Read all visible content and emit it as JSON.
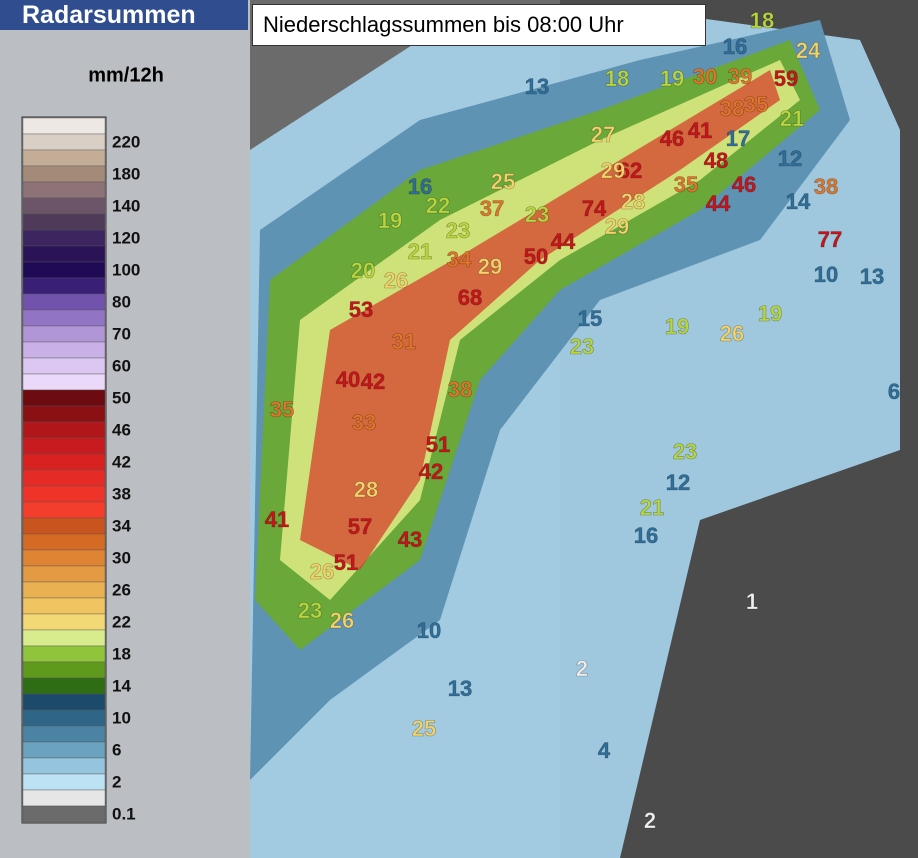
{
  "header": {
    "title": "Radarsummen",
    "subtitle": "Niederschlagssummen bis 08:00 Uhr"
  },
  "legend": {
    "unit": "mm/12h",
    "labels": [
      "220",
      "180",
      "140",
      "120",
      "100",
      "80",
      "70",
      "60",
      "50",
      "46",
      "42",
      "38",
      "34",
      "30",
      "26",
      "22",
      "18",
      "14",
      "10",
      "6",
      "2",
      "0.1"
    ]
  },
  "map_labels": [
    18,
    24,
    59,
    39,
    30,
    19,
    18,
    13,
    16,
    46,
    41,
    38,
    35,
    21,
    17,
    12,
    62,
    48,
    35,
    46,
    44,
    29,
    28,
    27,
    74,
    29,
    50,
    44,
    37,
    23,
    25,
    22,
    16,
    19,
    53,
    68,
    29,
    34,
    26,
    21,
    23,
    20,
    40,
    42,
    38,
    51,
    42,
    57,
    43,
    51,
    41,
    35,
    33,
    31,
    28,
    26,
    23,
    26,
    25,
    23,
    15,
    19,
    26,
    19,
    23,
    21,
    16,
    77,
    13,
    10,
    38,
    14,
    12,
    10,
    13,
    2,
    1,
    2,
    4,
    6
  ]
}
